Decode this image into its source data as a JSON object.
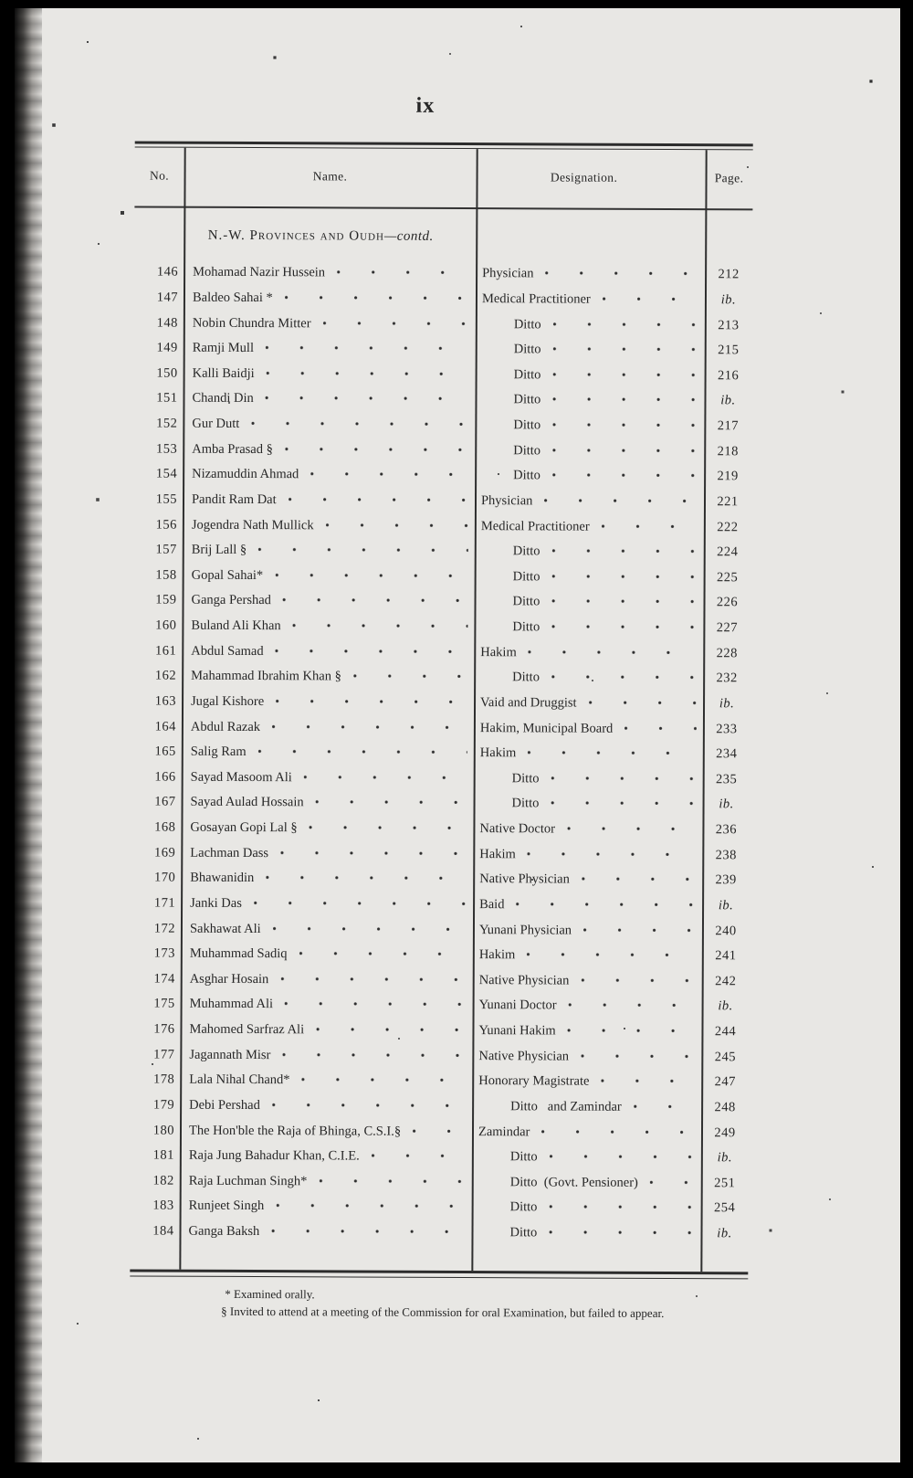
{
  "page": {
    "folio": "ix",
    "section_heading": {
      "main": "N.-W. Provinces and Oudh",
      "suffix": "—contd."
    }
  },
  "table": {
    "headers": {
      "no": "No.",
      "name": "Name.",
      "designation": "Designation.",
      "page": "Page."
    },
    "rows": [
      {
        "no": "146",
        "name": "Mohamad Nazir Hussein",
        "designation": "Physician",
        "page": "212"
      },
      {
        "no": "147",
        "name": "Baldeo Sahai *",
        "designation": "Medical Practitioner",
        "page": "ib."
      },
      {
        "no": "148",
        "name": "Nobin Chundra Mitter",
        "designation": "Ditto",
        "page": "213"
      },
      {
        "no": "149",
        "name": "Ramji Mull",
        "designation": "Ditto",
        "page": "215"
      },
      {
        "no": "150",
        "name": "Kalli Baidji",
        "designation": "Ditto",
        "page": "216"
      },
      {
        "no": "151",
        "name": "Chandi Din",
        "designation": "Ditto",
        "page": "ib."
      },
      {
        "no": "152",
        "name": "Gur Dutt",
        "designation": "Ditto",
        "page": "217"
      },
      {
        "no": "153",
        "name": "Amba Prasad §",
        "designation": "Ditto",
        "page": "218"
      },
      {
        "no": "154",
        "name": "Nizamuddin Ahmad",
        "designation": "Ditto",
        "page": "219"
      },
      {
        "no": "155",
        "name": "Pandit Ram Dat",
        "designation": "Physician",
        "page": "221"
      },
      {
        "no": "156",
        "name": "Jogendra Nath Mullick",
        "designation": "Medical Practitioner",
        "page": "222"
      },
      {
        "no": "157",
        "name": "Brij Lall §",
        "designation": "Ditto",
        "page": "224"
      },
      {
        "no": "158",
        "name": "Gopal Sahai*",
        "designation": "Ditto",
        "page": "225"
      },
      {
        "no": "159",
        "name": "Ganga Pershad",
        "designation": "Ditto",
        "page": "226"
      },
      {
        "no": "160",
        "name": "Buland Ali Khan",
        "designation": "Ditto",
        "page": "227"
      },
      {
        "no": "161",
        "name": "Abdul Samad",
        "designation": "Hakim",
        "page": "228"
      },
      {
        "no": "162",
        "name": "Mahammad Ibrahim Khan §",
        "designation": "Ditto",
        "page": "232"
      },
      {
        "no": "163",
        "name": "Jugal Kishore",
        "designation": "Vaid and Druggist",
        "page": "ib."
      },
      {
        "no": "164",
        "name": "Abdul Razak",
        "designation": "Hakim, Municipal Board",
        "page": "233"
      },
      {
        "no": "165",
        "name": "Salig Ram",
        "designation": "Hakim",
        "page": "234"
      },
      {
        "no": "166",
        "name": "Sayad Masoom Ali",
        "designation": "Ditto",
        "page": "235"
      },
      {
        "no": "167",
        "name": "Sayad Aulad Hossain",
        "designation": "Ditto",
        "page": "ib."
      },
      {
        "no": "168",
        "name": "Gosayan Gopi Lal §",
        "designation": "Native Doctor",
        "page": "236"
      },
      {
        "no": "169",
        "name": "Lachman Dass",
        "designation": "Hakim",
        "page": "238"
      },
      {
        "no": "170",
        "name": "Bhawanidin",
        "designation": "Native Physician",
        "page": "239"
      },
      {
        "no": "171",
        "name": "Janki Das",
        "designation": "Baid",
        "page": "ib."
      },
      {
        "no": "172",
        "name": "Sakhawat Ali",
        "designation": "Yunani Physician",
        "page": "240"
      },
      {
        "no": "173",
        "name": "Muhammad Sadiq",
        "designation": "Hakim",
        "page": "241"
      },
      {
        "no": "174",
        "name": "Asghar Hosain",
        "designation": "Native Physician",
        "page": "242"
      },
      {
        "no": "175",
        "name": "Muhammad Ali",
        "designation": "Yunani Doctor",
        "page": "ib."
      },
      {
        "no": "176",
        "name": "Mahomed Sarfraz Ali",
        "designation": "Yunani Hakim",
        "page": "244"
      },
      {
        "no": "177",
        "name": "Jagannath Misr",
        "designation": "Native Physician",
        "page": "245"
      },
      {
        "no": "178",
        "name": "Lala Nihal Chand*",
        "designation": "Honorary Magistrate",
        "page": "247"
      },
      {
        "no": "179",
        "name": "Debi Pershad",
        "designation": "Ditto   and Zamindar",
        "page": "248"
      },
      {
        "no": "180",
        "name": "The Hon'ble the Raja of Bhinga, C.S.I.§",
        "designation": "Zamindar",
        "page": "249"
      },
      {
        "no": "181",
        "name": "Raja Jung Bahadur Khan, C.I.E.",
        "designation": "Ditto",
        "page": "ib."
      },
      {
        "no": "182",
        "name": "Raja Luchman Singh*",
        "designation": "Ditto  (Govt. Pensioner)",
        "page": "251"
      },
      {
        "no": "183",
        "name": "Runjeet Singh",
        "designation": "Ditto",
        "page": "254"
      },
      {
        "no": "184",
        "name": "Ganga Baksh",
        "designation": "Ditto",
        "page": "ib."
      }
    ]
  },
  "footnotes": [
    "* Examined orally.",
    "§ Invited to attend at a meeting of the Commission for oral Examination, but failed to appear."
  ]
}
